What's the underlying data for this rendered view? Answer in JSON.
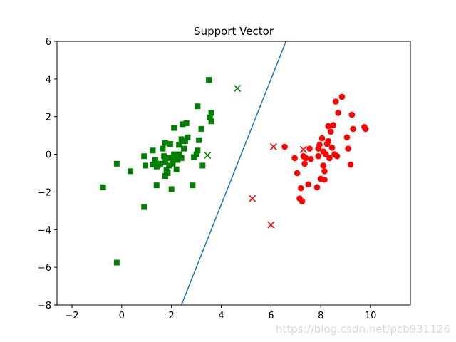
{
  "chart_data": {
    "type": "scatter",
    "title": "Support Vector",
    "xlabel": "",
    "ylabel": "",
    "xlim": [
      -2.6,
      11.6
    ],
    "ylim": [
      -8,
      6
    ],
    "xticks": [
      -2,
      0,
      2,
      4,
      6,
      8,
      10
    ],
    "yticks": [
      -8,
      -6,
      -4,
      -2,
      0,
      2,
      4,
      6
    ],
    "grid": false,
    "legend": "none",
    "series": [
      {
        "marker": "square",
        "color": "#008000",
        "points": [
          [
            -0.75,
            -1.75
          ],
          [
            -0.2,
            -0.5
          ],
          [
            0.35,
            -0.9
          ],
          [
            -0.2,
            -5.75
          ],
          [
            0.9,
            -2.8
          ],
          [
            0.95,
            -0.6
          ],
          [
            0.9,
            -0.1
          ],
          [
            1.25,
            0.2
          ],
          [
            1.25,
            -0.55
          ],
          [
            1.35,
            -0.3
          ],
          [
            1.4,
            -0.65
          ],
          [
            1.4,
            -1.65
          ],
          [
            1.45,
            -0.6
          ],
          [
            1.55,
            -0.5
          ],
          [
            1.65,
            0.3
          ],
          [
            1.75,
            0.6
          ],
          [
            1.7,
            -0.1
          ],
          [
            1.75,
            -0.4
          ],
          [
            1.8,
            -0.85
          ],
          [
            1.75,
            -1.15
          ],
          [
            1.85,
            -1.0
          ],
          [
            1.9,
            -0.6
          ],
          [
            1.95,
            0.55
          ],
          [
            1.95,
            -0.2
          ],
          [
            2.0,
            -1.85
          ],
          [
            2.05,
            -0.5
          ],
          [
            2.1,
            0.0
          ],
          [
            2.15,
            -0.3
          ],
          [
            2.1,
            1.4
          ],
          [
            2.2,
            -0.8
          ],
          [
            2.25,
            -0.3
          ],
          [
            2.3,
            0.0
          ],
          [
            2.3,
            0.5
          ],
          [
            2.4,
            -0.2
          ],
          [
            2.4,
            0.8
          ],
          [
            2.45,
            1.6
          ],
          [
            2.5,
            0.3
          ],
          [
            2.55,
            0.7
          ],
          [
            2.6,
            1.65
          ],
          [
            2.65,
            0.9
          ],
          [
            2.85,
            -1.65
          ],
          [
            2.9,
            -0.15
          ],
          [
            3.0,
            0.0
          ],
          [
            3.05,
            0.2
          ],
          [
            3.05,
            2.55
          ],
          [
            3.1,
            0.75
          ],
          [
            3.2,
            1.35
          ],
          [
            3.25,
            -0.6
          ],
          [
            3.5,
            3.95
          ],
          [
            3.55,
            1.95
          ],
          [
            3.6,
            2.2
          ],
          [
            3.6,
            1.75
          ]
        ]
      },
      {
        "marker": "circle",
        "color": "#ff0000",
        "points": [
          [
            6.55,
            0.4
          ],
          [
            6.95,
            -0.2
          ],
          [
            7.05,
            -1.0
          ],
          [
            7.15,
            -2.35
          ],
          [
            7.2,
            -1.8
          ],
          [
            7.25,
            -2.5
          ],
          [
            7.3,
            -0.1
          ],
          [
            7.35,
            -0.5
          ],
          [
            7.4,
            -0.2
          ],
          [
            7.5,
            -1.6
          ],
          [
            7.55,
            0.3
          ],
          [
            7.6,
            -0.25
          ],
          [
            7.85,
            -1.75
          ],
          [
            7.9,
            -0.1
          ],
          [
            7.9,
            0.3
          ],
          [
            7.95,
            0.5
          ],
          [
            8.0,
            -1.3
          ],
          [
            8.05,
            0.85
          ],
          [
            8.1,
            -0.6
          ],
          [
            8.1,
            0.15
          ],
          [
            8.15,
            -1.35
          ],
          [
            8.15,
            -0.9
          ],
          [
            8.2,
            0.0
          ],
          [
            8.25,
            0.55
          ],
          [
            8.3,
            0.7
          ],
          [
            8.3,
            1.5
          ],
          [
            8.35,
            -0.2
          ],
          [
            8.4,
            1.2
          ],
          [
            8.45,
            0.35
          ],
          [
            8.5,
            1.55
          ],
          [
            8.55,
            0.0
          ],
          [
            8.6,
            2.8
          ],
          [
            8.65,
            -0.1
          ],
          [
            8.7,
            2.2
          ],
          [
            8.85,
            3.05
          ],
          [
            9.05,
            0.9
          ],
          [
            9.1,
            0.3
          ],
          [
            9.2,
            -0.55
          ],
          [
            9.25,
            2.1
          ],
          [
            9.3,
            1.35
          ],
          [
            9.75,
            1.45
          ],
          [
            9.8,
            1.35
          ]
        ]
      },
      {
        "marker": "x",
        "color": "#008000",
        "points": [
          [
            3.45,
            -0.05
          ],
          [
            4.65,
            3.5
          ]
        ]
      },
      {
        "marker": "x",
        "color": "#ff0000",
        "points": [
          [
            5.25,
            -2.35
          ],
          [
            6.0,
            -3.75
          ],
          [
            6.1,
            0.4
          ],
          [
            7.3,
            0.25
          ]
        ]
      }
    ],
    "lines": [
      {
        "color": "#1f77b4",
        "points": [
          [
            2.4,
            -8
          ],
          [
            6.6,
            6
          ]
        ]
      }
    ]
  },
  "watermark": "https://blog.csdn.net/pcb931126"
}
